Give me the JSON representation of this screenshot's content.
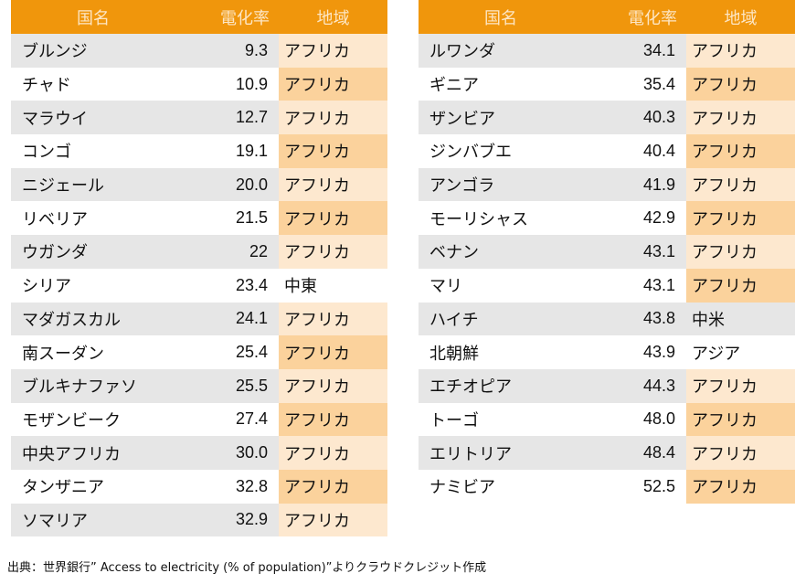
{
  "headers": {
    "name": "国名",
    "rate": "電化率",
    "region": "地域"
  },
  "tables": [
    [
      [
        "ブルンジ",
        "9.3",
        "アフリカ"
      ],
      [
        "チャド",
        "10.9",
        "アフリカ"
      ],
      [
        "マラウイ",
        "12.7",
        "アフリカ"
      ],
      [
        "コンゴ",
        "19.1",
        "アフリカ"
      ],
      [
        "ニジェール",
        "20.0",
        "アフリカ"
      ],
      [
        "リベリア",
        "21.5",
        "アフリカ"
      ],
      [
        "ウガンダ",
        "22",
        "アフリカ"
      ],
      [
        "シリア",
        "23.4",
        "中東"
      ],
      [
        "マダガスカル",
        "24.1",
        "アフリカ"
      ],
      [
        "南スーダン",
        "25.4",
        "アフリカ"
      ],
      [
        "ブルキナファソ",
        "25.5",
        "アフリカ"
      ],
      [
        "モザンビーク",
        "27.4",
        "アフリカ"
      ],
      [
        "中央アフリカ",
        "30.0",
        "アフリカ"
      ],
      [
        "タンザニア",
        "32.8",
        "アフリカ"
      ],
      [
        "ソマリア",
        "32.9",
        "アフリカ"
      ]
    ],
    [
      [
        "ルワンダ",
        "34.1",
        "アフリカ"
      ],
      [
        "ギニア",
        "35.4",
        "アフリカ"
      ],
      [
        "ザンビア",
        "40.3",
        "アフリカ"
      ],
      [
        "ジンバブエ",
        "40.4",
        "アフリカ"
      ],
      [
        "アンゴラ",
        "41.9",
        "アフリカ"
      ],
      [
        "モーリシャス",
        "42.9",
        "アフリカ"
      ],
      [
        "ベナン",
        "43.1",
        "アフリカ"
      ],
      [
        "マリ",
        "43.1",
        "アフリカ"
      ],
      [
        "ハイチ",
        "43.8",
        "中米"
      ],
      [
        "北朝鮮",
        "43.9",
        "アジア"
      ],
      [
        "エチオピア",
        "44.3",
        "アフリカ"
      ],
      [
        "トーゴ",
        "48.0",
        "アフリカ"
      ],
      [
        "エリトリア",
        "48.4",
        "アフリカ"
      ],
      [
        "ナミビア",
        "52.5",
        "アフリカ"
      ]
    ]
  ],
  "footer": "出典：世界銀行” Access to electricity (% of population)”よりクラウドクレジット作成",
  "colors": {
    "header": "#f0960c",
    "africa_light": "#fde8cf",
    "africa_dark": "#fbd29c",
    "gray_row": "#e6e6e6"
  }
}
